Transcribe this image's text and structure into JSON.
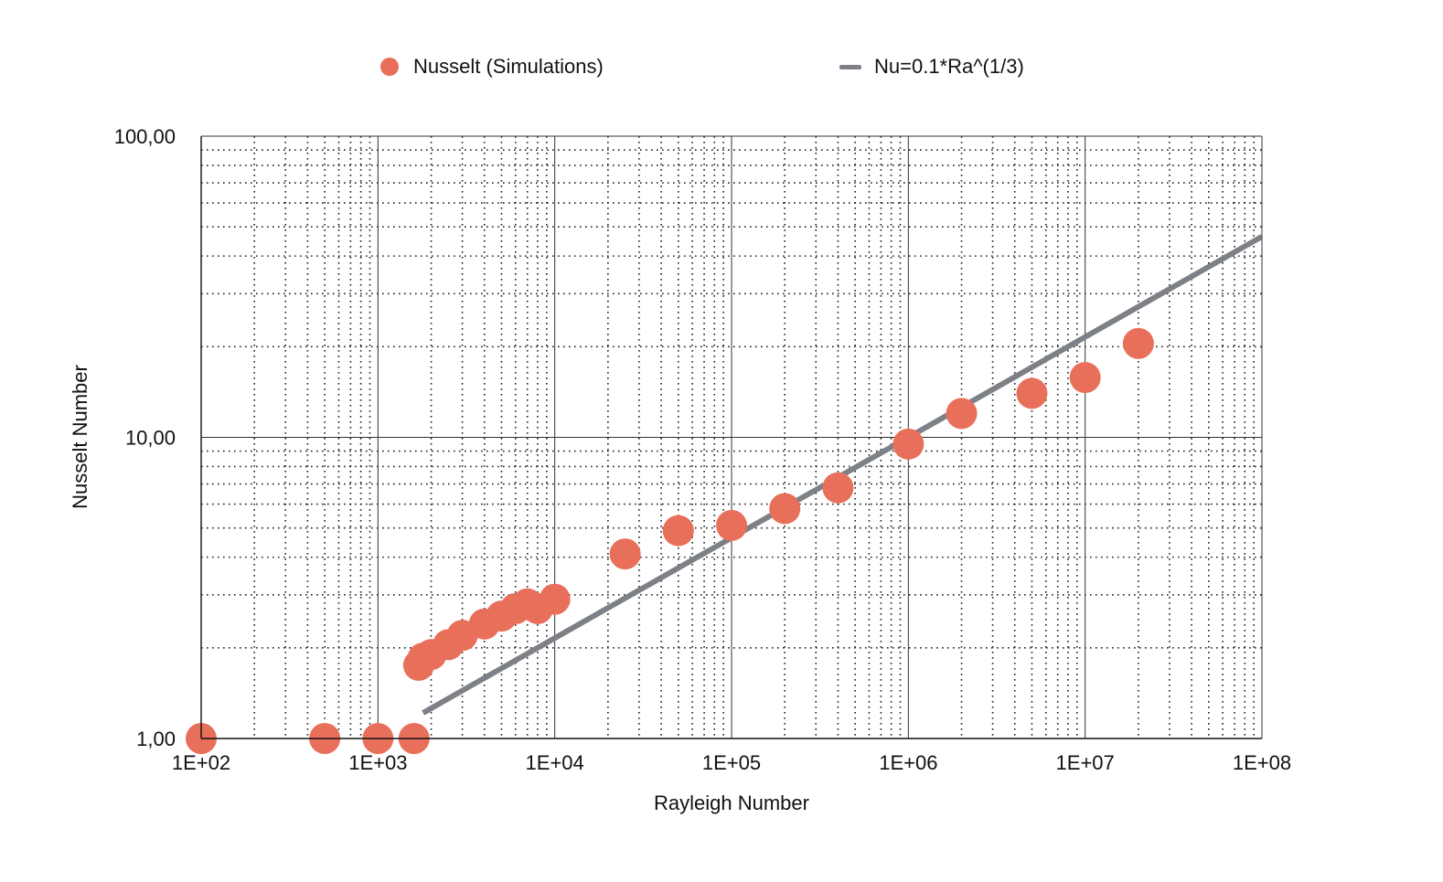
{
  "chart_data": {
    "type": "scatter",
    "x_scale": "log",
    "y_scale": "log",
    "xlabel": "Rayleigh Number",
    "ylabel": "Nusselt Number",
    "xlim": [
      100,
      100000000
    ],
    "ylim": [
      1,
      100
    ],
    "x_ticks": [
      "1E+02",
      "1E+03",
      "1E+04",
      "1E+05",
      "1E+06",
      "1E+07",
      "1E+08"
    ],
    "y_ticks": [
      "1,00",
      "10,00",
      "100,00"
    ],
    "grid": true,
    "legend_position": "top",
    "series": [
      {
        "name": "Nusselt (Simulations)",
        "kind": "scatter",
        "color": "#E8705A",
        "points": [
          {
            "x": 100,
            "y": 1.0
          },
          {
            "x": 500,
            "y": 1.0
          },
          {
            "x": 1000,
            "y": 1.0
          },
          {
            "x": 1600,
            "y": 1.0
          },
          {
            "x": 1700,
            "y": 1.75
          },
          {
            "x": 1800,
            "y": 1.85
          },
          {
            "x": 2000,
            "y": 1.9
          },
          {
            "x": 2500,
            "y": 2.05
          },
          {
            "x": 3000,
            "y": 2.2
          },
          {
            "x": 4000,
            "y": 2.4
          },
          {
            "x": 5000,
            "y": 2.55
          },
          {
            "x": 6000,
            "y": 2.7
          },
          {
            "x": 7000,
            "y": 2.8
          },
          {
            "x": 8000,
            "y": 2.7
          },
          {
            "x": 10000,
            "y": 2.9
          },
          {
            "x": 25000,
            "y": 4.1
          },
          {
            "x": 50000,
            "y": 4.9
          },
          {
            "x": 100000,
            "y": 5.1
          },
          {
            "x": 200000,
            "y": 5.8
          },
          {
            "x": 400000,
            "y": 6.8
          },
          {
            "x": 1000000,
            "y": 9.5
          },
          {
            "x": 2000000,
            "y": 12.0
          },
          {
            "x": 5000000,
            "y": 14.0
          },
          {
            "x": 10000000,
            "y": 15.8
          },
          {
            "x": 20000000,
            "y": 20.5
          }
        ]
      },
      {
        "name": "Nu=0.1*Ra^(1/3)",
        "kind": "line",
        "color": "#7D8187",
        "x": [
          1800,
          100000000
        ],
        "y": [
          1.2164,
          46.416
        ]
      }
    ]
  }
}
